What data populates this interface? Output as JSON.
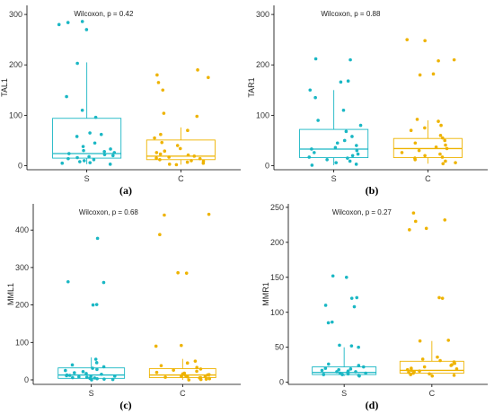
{
  "colors": {
    "S": "#1ab7c4",
    "C": "#eeb300"
  },
  "chart_data": [
    {
      "type": "box",
      "panel_label": "(a)",
      "ylabel": "TAL1",
      "annotation": "Wilcoxon, p = 0.42",
      "categories": [
        "S",
        "C"
      ],
      "yticks": [
        0,
        100,
        200,
        300
      ],
      "ylim": [
        -8,
        318
      ],
      "boxes": [
        {
          "group": "S",
          "q1": 15,
          "median": 24,
          "q3": 94,
          "whisker_low": 3,
          "whisker_high": 205
        },
        {
          "group": "C",
          "q1": 12,
          "median": 19,
          "q3": 51,
          "whisker_low": 2,
          "whisker_high": 76
        }
      ],
      "points": [
        {
          "group": "S",
          "values": [
            3,
            5,
            6,
            8,
            10,
            12,
            14,
            16,
            18,
            20,
            22,
            24,
            26,
            28,
            30,
            33,
            38,
            45,
            58,
            62,
            65,
            96,
            110,
            137,
            203,
            270,
            280,
            284,
            286
          ]
        },
        {
          "group": "C",
          "values": [
            2,
            3,
            5,
            7,
            9,
            10,
            12,
            14,
            15,
            17,
            19,
            21,
            23,
            26,
            29,
            34,
            40,
            46,
            55,
            62,
            70,
            98,
            104,
            150,
            165,
            175,
            180,
            190
          ]
        }
      ]
    },
    {
      "type": "box",
      "panel_label": "(b)",
      "ylabel": "TAR1",
      "annotation": "Wilcoxon, p = 0.88",
      "categories": [
        "S",
        "C"
      ],
      "yticks": [
        0,
        100,
        200,
        300
      ],
      "ylim": [
        -8,
        318
      ],
      "boxes": [
        {
          "group": "S",
          "q1": 16,
          "median": 33,
          "q3": 72,
          "whisker_low": 1,
          "whisker_high": 150
        },
        {
          "group": "C",
          "q1": 16,
          "median": 34,
          "q3": 54,
          "whisker_low": 4,
          "whisker_high": 90
        }
      ],
      "points": [
        {
          "group": "S",
          "values": [
            1,
            3,
            6,
            9,
            12,
            15,
            17,
            20,
            23,
            26,
            30,
            33,
            36,
            40,
            45,
            50,
            58,
            68,
            80,
            90,
            110,
            135,
            150,
            166,
            168,
            210,
            212
          ]
        },
        {
          "group": "C",
          "values": [
            4,
            6,
            9,
            12,
            15,
            17,
            20,
            23,
            26,
            30,
            34,
            37,
            41,
            45,
            50,
            55,
            60,
            70,
            75,
            80,
            88,
            92,
            180,
            182,
            208,
            210,
            248,
            250
          ]
        }
      ]
    },
    {
      "type": "box",
      "panel_label": "(c)",
      "ylabel": "MML1",
      "annotation": "Wilcoxon, p = 0.68",
      "categories": [
        "S",
        "C"
      ],
      "yticks": [
        0,
        100,
        200,
        300,
        400
      ],
      "ylim": [
        -12,
        470
      ],
      "boxes": [
        {
          "group": "S",
          "q1": 4,
          "median": 13,
          "q3": 32,
          "whisker_low": 0,
          "whisker_high": 60
        },
        {
          "group": "C",
          "q1": 6,
          "median": 13,
          "q3": 30,
          "whisker_low": 0,
          "whisker_high": 56
        }
      ],
      "points": [
        {
          "group": "S",
          "values": [
            0,
            1,
            2,
            3,
            4,
            5,
            6,
            7,
            8,
            9,
            10,
            11,
            12,
            13,
            15,
            17,
            19,
            22,
            25,
            28,
            31,
            35,
            40,
            46,
            55,
            200,
            201,
            260,
            262,
            378
          ]
        },
        {
          "group": "C",
          "values": [
            0,
            1,
            2,
            3,
            4,
            5,
            6,
            7,
            8,
            9,
            10,
            11,
            12,
            13,
            14,
            16,
            18,
            20,
            23,
            26,
            29,
            33,
            38,
            45,
            50,
            90,
            92,
            285,
            286,
            388,
            440,
            442
          ]
        }
      ]
    },
    {
      "type": "box",
      "panel_label": "(d)",
      "ylabel": "MMR1",
      "annotation": "Wilcoxon, p = 0.27",
      "categories": [
        "S",
        "C"
      ],
      "yticks": [
        0,
        50,
        100,
        150,
        200,
        250
      ],
      "ylim": [
        -3,
        255
      ],
      "boxes": [
        {
          "group": "S",
          "q1": 11,
          "median": 14,
          "q3": 22,
          "whisker_low": 9,
          "whisker_high": 50
        },
        {
          "group": "C",
          "q1": 13,
          "median": 17,
          "q3": 30,
          "whisker_low": 9,
          "whisker_high": 59
        }
      ],
      "points": [
        {
          "group": "S",
          "values": [
            9,
            10,
            11,
            11,
            12,
            13,
            13,
            14,
            15,
            15,
            16,
            17,
            18,
            19,
            20,
            22,
            24,
            26,
            50,
            52,
            53,
            85,
            86,
            108,
            110,
            120,
            121,
            150,
            152
          ]
        },
        {
          "group": "C",
          "values": [
            9,
            10,
            11,
            12,
            13,
            14,
            15,
            16,
            17,
            18,
            19,
            20,
            22,
            24,
            25,
            27,
            29,
            31,
            33,
            36,
            59,
            60,
            120,
            121,
            218,
            220,
            230,
            232,
            242
          ]
        }
      ]
    }
  ]
}
